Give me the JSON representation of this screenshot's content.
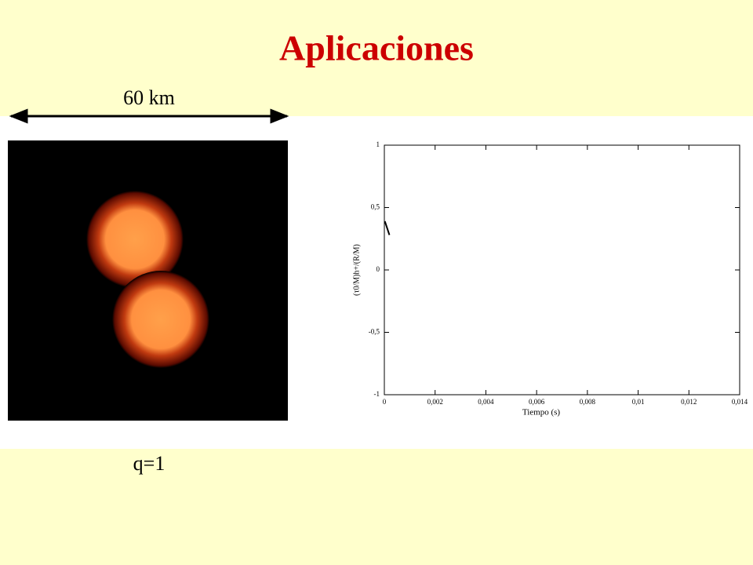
{
  "title": "Aplicaciones",
  "scale_label": "60 km",
  "caption": "q=1",
  "chart_data": {
    "type": "line",
    "x_label": "Tiempo (s)",
    "y_label": "(τ0/M)h+/(R/M)",
    "xlim": [
      0,
      0.014
    ],
    "ylim": [
      -1,
      1
    ],
    "xticks": [
      0,
      {
        "value": 0.002,
        "label": "0,002"
      },
      {
        "value": 0.004,
        "label": "0,004"
      },
      {
        "value": 0.006,
        "label": "0,006"
      },
      {
        "value": 0.008,
        "label": "0,008"
      },
      {
        "value": 0.01,
        "label": "0,01"
      },
      {
        "value": 0.012,
        "label": "0,012"
      },
      {
        "value": 0.014,
        "label": "0,014"
      }
    ],
    "yticks": [
      -1,
      {
        "value": -0.5,
        "label": "-0,5"
      },
      0,
      {
        "value": 0.5,
        "label": "0,5"
      },
      1
    ],
    "series": [
      {
        "color": "#000000",
        "x": [
          2e-05,
          0.0002
        ],
        "values": [
          0.39,
          0.28
        ]
      }
    ]
  }
}
